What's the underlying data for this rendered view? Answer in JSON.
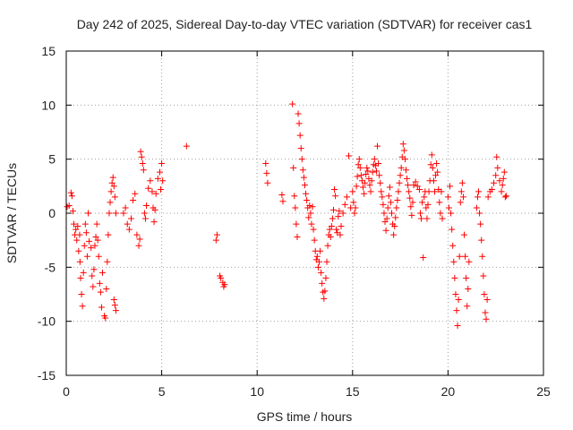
{
  "chart_data": {
    "type": "scatter",
    "title": "Day 242 of 2025, Sidereal Day-to-day VTEC variation (SDTVAR) for receiver cas1",
    "xlabel": "GPS time / hours",
    "ylabel": "SDTVAR / TECUs",
    "xlim": [
      0,
      25
    ],
    "ylim": [
      -15,
      15
    ],
    "xticks": [
      0,
      5,
      10,
      15,
      20,
      25
    ],
    "yticks": [
      -15,
      -10,
      -5,
      0,
      5,
      10,
      15
    ],
    "grid": true,
    "marker": "plus",
    "marker_color": "#ff0000",
    "series": [
      {
        "name": "SDTVAR",
        "points": [
          [
            0.05,
            0.6
          ],
          [
            0.15,
            0.7
          ],
          [
            0.25,
            1.9
          ],
          [
            0.3,
            1.6
          ],
          [
            0.35,
            0.2
          ],
          [
            0.4,
            -1.0
          ],
          [
            0.45,
            -2.0
          ],
          [
            0.5,
            -1.5
          ],
          [
            0.55,
            -2.5
          ],
          [
            0.6,
            -1.2
          ],
          [
            0.65,
            -3.5
          ],
          [
            0.7,
            -2.0
          ],
          [
            0.72,
            -4.5
          ],
          [
            0.75,
            -6.0
          ],
          [
            0.8,
            -7.5
          ],
          [
            0.85,
            -8.6
          ],
          [
            0.9,
            -5.5
          ],
          [
            0.95,
            -3.0
          ],
          [
            1.0,
            -1.0
          ],
          [
            1.05,
            -1.8
          ],
          [
            1.1,
            -4.0
          ],
          [
            1.15,
            0.0
          ],
          [
            1.2,
            -2.6
          ],
          [
            1.3,
            -3.2
          ],
          [
            1.35,
            -5.8
          ],
          [
            1.4,
            -6.8
          ],
          [
            1.45,
            -5.2
          ],
          [
            1.5,
            -3.0
          ],
          [
            1.55,
            -2.2
          ],
          [
            1.6,
            -1.0
          ],
          [
            1.65,
            -2.5
          ],
          [
            1.7,
            -4.0
          ],
          [
            1.75,
            -6.5
          ],
          [
            1.8,
            -7.3
          ],
          [
            1.85,
            -8.7
          ],
          [
            1.9,
            -5.5
          ],
          [
            2.0,
            -9.5
          ],
          [
            2.05,
            -9.7
          ],
          [
            2.1,
            -7.0
          ],
          [
            2.15,
            -4.5
          ],
          [
            2.2,
            -2.0
          ],
          [
            2.25,
            0.0
          ],
          [
            2.3,
            1.0
          ],
          [
            2.35,
            2.0
          ],
          [
            2.4,
            2.8
          ],
          [
            2.45,
            3.3
          ],
          [
            2.5,
            2.5
          ],
          [
            2.55,
            1.5
          ],
          [
            2.6,
            0.0
          ],
          [
            2.5,
            -8.0
          ],
          [
            2.55,
            -8.5
          ],
          [
            2.6,
            -9.0
          ],
          [
            3.0,
            0.0
          ],
          [
            3.1,
            0.5
          ],
          [
            3.2,
            -1.0
          ],
          [
            3.3,
            -1.5
          ],
          [
            3.4,
            -0.5
          ],
          [
            3.5,
            1.2
          ],
          [
            3.6,
            1.8
          ],
          [
            3.7,
            -2.0
          ],
          [
            3.8,
            -3.0
          ],
          [
            3.85,
            -2.4
          ],
          [
            3.9,
            5.7
          ],
          [
            3.95,
            5.2
          ],
          [
            4.0,
            4.6
          ],
          [
            4.05,
            4.0
          ],
          [
            4.1,
            0.0
          ],
          [
            4.15,
            -0.5
          ],
          [
            4.2,
            0.7
          ],
          [
            4.3,
            2.3
          ],
          [
            4.4,
            3.0
          ],
          [
            4.5,
            2.0
          ],
          [
            4.55,
            0.5
          ],
          [
            4.6,
            -0.8
          ],
          [
            4.65,
            0.3
          ],
          [
            4.7,
            1.8
          ],
          [
            4.8,
            3.2
          ],
          [
            4.9,
            3.8
          ],
          [
            5.0,
            4.6
          ],
          [
            5.05,
            3.0
          ],
          [
            4.95,
            2.2
          ],
          [
            6.3,
            6.2
          ],
          [
            7.85,
            -2.5
          ],
          [
            7.9,
            -2.0
          ],
          [
            8.05,
            -5.8
          ],
          [
            8.1,
            -6.0
          ],
          [
            8.2,
            -6.4
          ],
          [
            8.25,
            -6.8
          ],
          [
            8.3,
            -6.6
          ],
          [
            10.45,
            4.6
          ],
          [
            10.5,
            3.7
          ],
          [
            10.55,
            2.8
          ],
          [
            11.3,
            1.7
          ],
          [
            11.35,
            1.1
          ],
          [
            11.85,
            10.1
          ],
          [
            11.9,
            4.2
          ],
          [
            11.95,
            1.6
          ],
          [
            12.0,
            0.5
          ],
          [
            12.05,
            -1.0
          ],
          [
            12.1,
            -2.2
          ],
          [
            12.15,
            9.2
          ],
          [
            12.2,
            8.3
          ],
          [
            12.25,
            7.2
          ],
          [
            12.3,
            6.0
          ],
          [
            12.35,
            5.0
          ],
          [
            12.4,
            4.0
          ],
          [
            12.45,
            3.3
          ],
          [
            12.5,
            2.6
          ],
          [
            12.55,
            1.8
          ],
          [
            12.6,
            1.2
          ],
          [
            12.65,
            0.5
          ],
          [
            12.7,
            -0.4
          ],
          [
            12.75,
            0.7
          ],
          [
            12.8,
            0.0
          ],
          [
            12.85,
            -1.0
          ],
          [
            12.9,
            0.6
          ],
          [
            12.95,
            -1.5
          ],
          [
            13.0,
            -2.5
          ],
          [
            13.05,
            -3.5
          ],
          [
            13.1,
            -4.3
          ],
          [
            13.15,
            -4.0
          ],
          [
            13.2,
            -5.0
          ],
          [
            13.25,
            -4.5
          ],
          [
            13.3,
            -3.5
          ],
          [
            13.35,
            -5.5
          ],
          [
            13.4,
            -6.5
          ],
          [
            13.45,
            -7.3
          ],
          [
            13.5,
            -7.9
          ],
          [
            13.55,
            -7.2
          ],
          [
            13.6,
            -6.0
          ],
          [
            13.65,
            -4.5
          ],
          [
            13.7,
            -3.0
          ],
          [
            13.75,
            -2.0
          ],
          [
            13.8,
            -1.5
          ],
          [
            13.85,
            -2.2
          ],
          [
            13.9,
            -1.2
          ],
          [
            13.95,
            -0.5
          ],
          [
            14.0,
            0.3
          ],
          [
            14.05,
            2.2
          ],
          [
            14.1,
            1.6
          ],
          [
            14.15,
            -1.5
          ],
          [
            14.2,
            -1.8
          ],
          [
            14.25,
            -0.3
          ],
          [
            14.3,
            0.2
          ],
          [
            14.35,
            -2.0
          ],
          [
            14.4,
            -1.2
          ],
          [
            14.5,
            0.0
          ],
          [
            14.6,
            0.8
          ],
          [
            14.7,
            1.5
          ],
          [
            14.8,
            5.3
          ],
          [
            14.9,
            0.5
          ],
          [
            15.0,
            2.0
          ],
          [
            15.05,
            1.0
          ],
          [
            15.1,
            0.0
          ],
          [
            15.15,
            0.5
          ],
          [
            15.2,
            2.5
          ],
          [
            15.25,
            3.4
          ],
          [
            15.3,
            4.5
          ],
          [
            15.35,
            5.0
          ],
          [
            15.4,
            4.2
          ],
          [
            15.45,
            3.5
          ],
          [
            15.5,
            3.0
          ],
          [
            15.55,
            2.4
          ],
          [
            15.6,
            1.8
          ],
          [
            15.65,
            2.8
          ],
          [
            15.7,
            3.6
          ],
          [
            15.75,
            4.2
          ],
          [
            15.8,
            3.9
          ],
          [
            15.85,
            3.2
          ],
          [
            15.9,
            2.6
          ],
          [
            15.95,
            2.0
          ],
          [
            16.0,
            3.0
          ],
          [
            16.05,
            3.8
          ],
          [
            16.1,
            4.5
          ],
          [
            16.15,
            5.0
          ],
          [
            16.2,
            4.4
          ],
          [
            16.25,
            3.9
          ],
          [
            16.3,
            6.2
          ],
          [
            16.35,
            4.6
          ],
          [
            16.4,
            3.5
          ],
          [
            16.45,
            2.8
          ],
          [
            16.5,
            2.0
          ],
          [
            16.55,
            1.5
          ],
          [
            16.6,
            0.8
          ],
          [
            16.65,
            0.0
          ],
          [
            16.7,
            -0.8
          ],
          [
            16.75,
            -1.6
          ],
          [
            16.8,
            -0.5
          ],
          [
            16.85,
            0.5
          ],
          [
            16.9,
            1.6
          ],
          [
            16.95,
            2.4
          ],
          [
            17.0,
            1.0
          ],
          [
            17.05,
            0.0
          ],
          [
            17.1,
            -1.0
          ],
          [
            17.15,
            -2.0
          ],
          [
            17.2,
            -1.2
          ],
          [
            17.25,
            -0.4
          ],
          [
            17.3,
            0.5
          ],
          [
            17.35,
            1.2
          ],
          [
            17.4,
            2.0
          ],
          [
            17.45,
            2.8
          ],
          [
            17.5,
            3.5
          ],
          [
            17.55,
            4.2
          ],
          [
            17.6,
            5.2
          ],
          [
            17.65,
            6.4
          ],
          [
            17.7,
            5.8
          ],
          [
            17.75,
            5.0
          ],
          [
            17.8,
            4.0
          ],
          [
            17.85,
            3.2
          ],
          [
            17.9,
            2.6
          ],
          [
            17.95,
            2.0
          ],
          [
            18.0,
            1.4
          ],
          [
            18.05,
            0.6
          ],
          [
            18.1,
            -0.2
          ],
          [
            18.15,
            1.0
          ],
          [
            18.2,
            2.6
          ],
          [
            18.3,
            2.9
          ],
          [
            18.4,
            2.5
          ],
          [
            18.5,
            2.2
          ],
          [
            18.55,
            0.0
          ],
          [
            18.6,
            -0.5
          ],
          [
            18.65,
            1.0
          ],
          [
            18.7,
            -4.1
          ],
          [
            18.75,
            1.5
          ],
          [
            18.8,
            2.0
          ],
          [
            18.85,
            0.5
          ],
          [
            18.9,
            -0.5
          ],
          [
            18.95,
            0.8
          ],
          [
            19.0,
            2.0
          ],
          [
            19.05,
            3.0
          ],
          [
            19.1,
            4.5
          ],
          [
            19.15,
            5.4
          ],
          [
            19.2,
            4.2
          ],
          [
            19.25,
            3.0
          ],
          [
            19.3,
            2.0
          ],
          [
            19.35,
            3.5
          ],
          [
            19.4,
            4.6
          ],
          [
            19.45,
            3.8
          ],
          [
            19.5,
            2.2
          ],
          [
            19.55,
            1.0
          ],
          [
            19.6,
            0.0
          ],
          [
            19.65,
            2.0
          ],
          [
            19.7,
            -0.5
          ],
          [
            20.0,
            1.5
          ],
          [
            20.05,
            0.5
          ],
          [
            20.1,
            2.5
          ],
          [
            20.15,
            0.0
          ],
          [
            20.2,
            -1.5
          ],
          [
            20.25,
            -3.0
          ],
          [
            20.3,
            -4.5
          ],
          [
            20.35,
            -6.0
          ],
          [
            20.4,
            -7.5
          ],
          [
            20.45,
            -9.0
          ],
          [
            20.5,
            -10.4
          ],
          [
            20.55,
            -8.0
          ],
          [
            20.6,
            -4.0
          ],
          [
            20.65,
            1.0
          ],
          [
            20.7,
            2.0
          ],
          [
            20.75,
            2.8
          ],
          [
            20.8,
            1.5
          ],
          [
            20.85,
            -2.0
          ],
          [
            20.9,
            -4.0
          ],
          [
            20.95,
            -6.0
          ],
          [
            21.0,
            -8.6
          ],
          [
            21.05,
            -7.0
          ],
          [
            21.1,
            -4.5
          ],
          [
            21.5,
            0.5
          ],
          [
            21.55,
            1.5
          ],
          [
            21.6,
            2.0
          ],
          [
            21.65,
            0.0
          ],
          [
            21.7,
            -1.0
          ],
          [
            21.75,
            -2.5
          ],
          [
            21.8,
            -4.0
          ],
          [
            21.85,
            -5.8
          ],
          [
            21.9,
            -7.5
          ],
          [
            21.95,
            -9.2
          ],
          [
            22.0,
            -9.8
          ],
          [
            22.05,
            -8.0
          ],
          [
            22.1,
            1.5
          ],
          [
            22.2,
            2.0
          ],
          [
            22.3,
            2.2
          ],
          [
            22.4,
            2.8
          ],
          [
            22.5,
            3.5
          ],
          [
            22.55,
            5.2
          ],
          [
            22.6,
            4.2
          ],
          [
            22.7,
            3.0
          ],
          [
            22.8,
            2.0
          ],
          [
            22.85,
            2.6
          ],
          [
            22.9,
            3.2
          ],
          [
            22.95,
            3.8
          ],
          [
            23.0,
            1.5
          ],
          [
            23.05,
            1.6
          ]
        ]
      }
    ]
  }
}
